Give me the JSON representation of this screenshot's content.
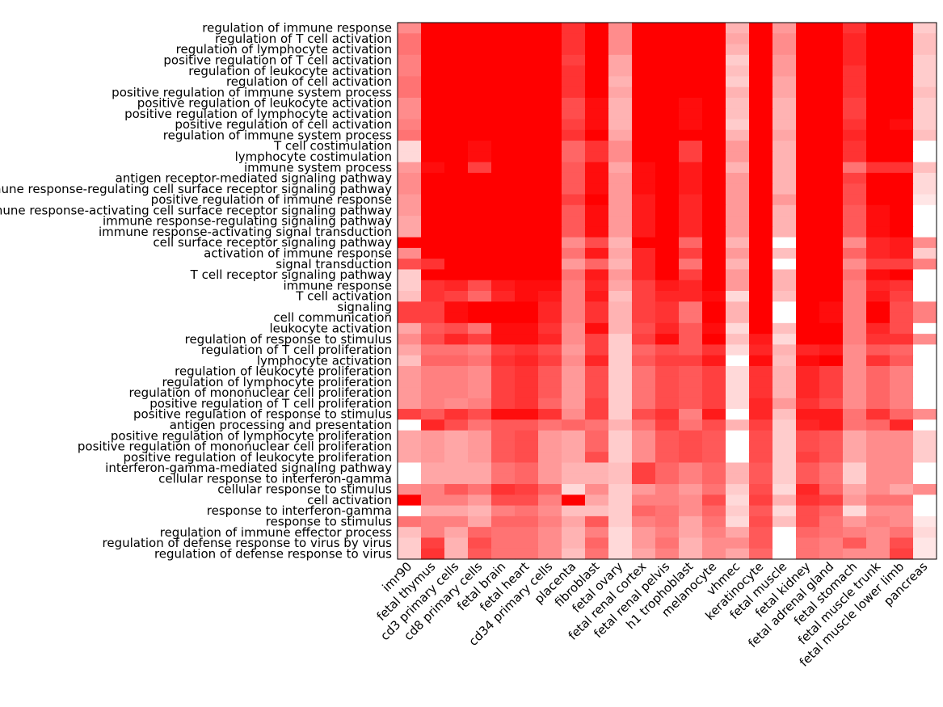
{
  "chart_data": {
    "type": "heatmap",
    "title": "",
    "xlabel": "",
    "ylabel": "",
    "color_low": "#ffffff",
    "color_high": "#ff0000",
    "value_range": [
      0,
      1
    ],
    "grid": false,
    "rows": [
      "regulation of immune response",
      "regulation of T cell activation",
      "regulation of lymphocyte activation",
      "positive regulation of T cell activation",
      "regulation of leukocyte activation",
      "regulation of cell activation",
      "positive regulation of immune system process",
      "positive regulation of leukocyte activation",
      "positive regulation of lymphocyte activation",
      "positive regulation of cell activation",
      "regulation of immune system process",
      "T cell costimulation",
      "lymphocyte costimulation",
      "immune system process",
      "antigen receptor-mediated signaling pathway",
      "immune response-regulating cell surface receptor signaling pathway",
      "positive regulation of immune response",
      "immune response-activating cell surface receptor signaling pathway",
      "immune response-regulating signaling pathway",
      "immune response-activating signal transduction",
      "cell surface receptor signaling pathway",
      "activation of immune response",
      "signal transduction",
      "T cell receptor signaling pathway",
      "immune response",
      "T cell activation",
      "signaling",
      "cell communication",
      "leukocyte activation",
      "regulation of response to stimulus",
      "regulation of T cell proliferation",
      "lymphocyte activation",
      "regulation of leukocyte proliferation",
      "regulation of lymphocyte proliferation",
      "regulation of mononuclear cell proliferation",
      "positive regulation of T cell proliferation",
      "positive regulation of response to stimulus",
      "antigen processing and presentation",
      "positive regulation of lymphocyte proliferation",
      "positive regulation of mononuclear cell proliferation",
      "positive regulation of leukocyte proliferation",
      "interferon-gamma-mediated signaling pathway",
      "cellular response to interferon-gamma",
      "cellular response to stimulus",
      "cell activation",
      "response to interferon-gamma",
      "response to stimulus",
      "regulation of immune effector process",
      "regulation of defense response to virus by virus",
      "regulation of defense response to virus"
    ],
    "columns": [
      "imr90",
      "fetal thymus",
      "cd3 primary cells",
      "cd8 primary cells",
      "fetal brain",
      "fetal heart",
      "cd34 primary cells",
      "placenta",
      "fibroblast",
      "fetal ovary",
      "fetal renal cortex",
      "fetal renal pelvis",
      "h1 trophoblast",
      "melanocyte",
      "vhmec",
      "keratinocyte",
      "fetal muscle",
      "fetal kidney",
      "fetal adrenal gland",
      "fetal stomach",
      "fetal muscle trunk",
      "fetal muscle lower limb",
      "pancreas"
    ],
    "values": [
      [
        0.45,
        1.0,
        1.0,
        1.0,
        1.0,
        1.0,
        1.0,
        0.8,
        1.0,
        0.45,
        1.0,
        1.0,
        1.0,
        1.0,
        0.3,
        1.0,
        0.4,
        1.0,
        1.0,
        0.8,
        1.0,
        1.0,
        0.2
      ],
      [
        0.55,
        1.0,
        1.0,
        1.0,
        1.0,
        1.0,
        1.0,
        0.8,
        1.0,
        0.45,
        1.0,
        1.0,
        1.0,
        1.0,
        0.35,
        1.0,
        0.45,
        1.0,
        1.0,
        0.85,
        1.0,
        1.0,
        0.25
      ],
      [
        0.55,
        1.0,
        1.0,
        1.0,
        1.0,
        1.0,
        1.0,
        0.8,
        1.0,
        0.45,
        1.0,
        1.0,
        1.0,
        1.0,
        0.3,
        1.0,
        0.45,
        1.0,
        1.0,
        0.85,
        1.0,
        1.0,
        0.25
      ],
      [
        0.5,
        1.0,
        1.0,
        1.0,
        1.0,
        1.0,
        1.0,
        0.75,
        1.0,
        0.35,
        1.0,
        1.0,
        1.0,
        1.0,
        0.2,
        1.0,
        0.4,
        1.0,
        1.0,
        0.85,
        1.0,
        1.0,
        0.2
      ],
      [
        0.5,
        1.0,
        1.0,
        1.0,
        1.0,
        1.0,
        1.0,
        0.8,
        1.0,
        0.35,
        1.0,
        1.0,
        1.0,
        1.0,
        0.25,
        1.0,
        0.4,
        1.0,
        1.0,
        0.8,
        1.0,
        1.0,
        0.2
      ],
      [
        0.55,
        1.0,
        1.0,
        1.0,
        1.0,
        1.0,
        1.0,
        0.8,
        1.0,
        0.3,
        1.0,
        1.0,
        1.0,
        1.0,
        0.2,
        1.0,
        0.35,
        1.0,
        1.0,
        0.8,
        1.0,
        1.0,
        0.2
      ],
      [
        0.55,
        1.0,
        1.0,
        1.0,
        1.0,
        1.0,
        1.0,
        0.8,
        1.0,
        0.35,
        1.0,
        1.0,
        1.0,
        1.0,
        0.3,
        1.0,
        0.35,
        1.0,
        1.0,
        0.8,
        1.0,
        1.0,
        0.25
      ],
      [
        0.45,
        1.0,
        1.0,
        1.0,
        1.0,
        1.0,
        1.0,
        0.7,
        0.95,
        0.3,
        1.0,
        1.0,
        0.95,
        1.0,
        0.25,
        1.0,
        0.3,
        1.0,
        1.0,
        0.75,
        1.0,
        1.0,
        0.2
      ],
      [
        0.45,
        1.0,
        1.0,
        1.0,
        1.0,
        1.0,
        1.0,
        0.7,
        0.95,
        0.3,
        1.0,
        1.0,
        0.95,
        1.0,
        0.25,
        1.0,
        0.3,
        1.0,
        1.0,
        0.75,
        1.0,
        1.0,
        0.2
      ],
      [
        0.5,
        1.0,
        1.0,
        1.0,
        1.0,
        1.0,
        1.0,
        0.75,
        0.95,
        0.3,
        1.0,
        1.0,
        0.95,
        1.0,
        0.2,
        1.0,
        0.3,
        1.0,
        1.0,
        0.8,
        1.0,
        0.95,
        0.2
      ],
      [
        0.55,
        1.0,
        1.0,
        1.0,
        1.0,
        1.0,
        1.0,
        0.8,
        1.0,
        0.35,
        1.0,
        1.0,
        1.0,
        1.0,
        0.3,
        1.0,
        0.35,
        1.0,
        1.0,
        0.85,
        1.0,
        1.0,
        0.25
      ],
      [
        0.15,
        1.0,
        1.0,
        0.95,
        1.0,
        1.0,
        1.0,
        0.6,
        0.8,
        0.45,
        1.0,
        1.0,
        0.75,
        1.0,
        0.4,
        1.0,
        0.3,
        1.0,
        1.0,
        0.8,
        1.0,
        1.0,
        0.0
      ],
      [
        0.15,
        1.0,
        1.0,
        0.95,
        1.0,
        1.0,
        1.0,
        0.6,
        0.8,
        0.45,
        1.0,
        1.0,
        0.75,
        1.0,
        0.4,
        1.0,
        0.3,
        1.0,
        1.0,
        0.8,
        1.0,
        1.0,
        0.0
      ],
      [
        0.4,
        0.95,
        1.0,
        0.75,
        1.0,
        1.0,
        1.0,
        0.65,
        0.95,
        0.35,
        0.95,
        1.0,
        0.9,
        1.0,
        0.3,
        1.0,
        0.3,
        1.0,
        1.0,
        0.55,
        0.8,
        0.8,
        0.25
      ],
      [
        0.45,
        1.0,
        1.0,
        1.0,
        1.0,
        1.0,
        1.0,
        0.65,
        0.95,
        0.4,
        0.95,
        1.0,
        0.9,
        1.0,
        0.4,
        1.0,
        0.3,
        1.0,
        1.0,
        0.75,
        1.0,
        1.0,
        0.15
      ],
      [
        0.45,
        1.0,
        1.0,
        1.0,
        1.0,
        1.0,
        1.0,
        0.65,
        0.95,
        0.4,
        0.95,
        1.0,
        0.9,
        1.0,
        0.4,
        1.0,
        0.3,
        1.0,
        1.0,
        0.7,
        1.0,
        1.0,
        0.15
      ],
      [
        0.4,
        1.0,
        1.0,
        1.0,
        1.0,
        1.0,
        1.0,
        0.75,
        1.0,
        0.4,
        0.9,
        1.0,
        0.85,
        1.0,
        0.4,
        1.0,
        0.4,
        1.0,
        1.0,
        0.7,
        1.0,
        1.0,
        0.1
      ],
      [
        0.4,
        1.0,
        1.0,
        1.0,
        1.0,
        1.0,
        1.0,
        0.65,
        0.95,
        0.4,
        0.9,
        1.0,
        0.85,
        1.0,
        0.4,
        1.0,
        0.3,
        1.0,
        1.0,
        0.65,
        0.95,
        1.0,
        0.0
      ],
      [
        0.35,
        1.0,
        1.0,
        1.0,
        1.0,
        1.0,
        1.0,
        0.65,
        0.95,
        0.4,
        0.9,
        1.0,
        0.85,
        1.0,
        0.4,
        1.0,
        0.3,
        1.0,
        1.0,
        0.65,
        0.95,
        1.0,
        0.0
      ],
      [
        0.35,
        1.0,
        1.0,
        1.0,
        1.0,
        1.0,
        1.0,
        0.65,
        0.95,
        0.4,
        0.9,
        1.0,
        0.85,
        1.0,
        0.4,
        1.0,
        0.3,
        1.0,
        1.0,
        0.65,
        0.95,
        1.0,
        0.0
      ],
      [
        1.0,
        1.0,
        1.0,
        1.0,
        1.0,
        1.0,
        1.0,
        0.45,
        0.7,
        0.3,
        1.0,
        1.0,
        0.6,
        1.0,
        0.3,
        1.0,
        0.0,
        1.0,
        1.0,
        0.45,
        0.85,
        0.9,
        0.45
      ],
      [
        0.45,
        1.0,
        1.0,
        1.0,
        1.0,
        1.0,
        1.0,
        0.55,
        0.9,
        0.35,
        0.85,
        1.0,
        0.75,
        1.0,
        0.4,
        1.0,
        0.25,
        1.0,
        1.0,
        0.6,
        0.85,
        0.9,
        0.2
      ],
      [
        0.7,
        0.8,
        1.0,
        1.0,
        1.0,
        1.0,
        1.0,
        0.4,
        0.6,
        0.3,
        0.85,
        1.0,
        0.55,
        1.0,
        0.3,
        1.0,
        0.0,
        1.0,
        1.0,
        0.45,
        0.75,
        0.75,
        0.5
      ],
      [
        0.2,
        1.0,
        1.0,
        1.0,
        1.0,
        1.0,
        1.0,
        0.55,
        0.9,
        0.4,
        0.85,
        1.0,
        0.75,
        1.0,
        0.4,
        1.0,
        0.3,
        1.0,
        1.0,
        0.55,
        0.95,
        1.0,
        0.0
      ],
      [
        0.2,
        0.8,
        0.85,
        0.7,
        0.9,
        0.95,
        0.95,
        0.5,
        0.85,
        0.35,
        0.75,
        0.9,
        0.85,
        1.0,
        0.4,
        1.0,
        0.3,
        1.0,
        1.0,
        0.5,
        0.85,
        0.8,
        0.0
      ],
      [
        0.25,
        0.8,
        0.75,
        0.6,
        0.85,
        0.95,
        0.9,
        0.5,
        0.9,
        0.25,
        0.75,
        0.85,
        0.85,
        0.95,
        0.15,
        1.0,
        0.25,
        1.0,
        1.0,
        0.5,
        0.9,
        0.75,
        0.0
      ],
      [
        0.75,
        0.75,
        0.95,
        1.0,
        1.0,
        1.0,
        0.85,
        0.5,
        0.8,
        0.3,
        0.75,
        0.8,
        0.55,
        1.0,
        0.3,
        1.0,
        0.0,
        1.0,
        0.95,
        0.5,
        1.0,
        0.7,
        0.5
      ],
      [
        0.75,
        0.75,
        0.95,
        1.0,
        1.0,
        1.0,
        0.85,
        0.5,
        0.8,
        0.3,
        0.75,
        0.8,
        0.55,
        1.0,
        0.3,
        1.0,
        0.0,
        1.0,
        0.95,
        0.5,
        1.0,
        0.7,
        0.5
      ],
      [
        0.35,
        0.65,
        0.7,
        0.55,
        0.95,
        0.95,
        0.8,
        0.45,
        0.95,
        0.3,
        0.7,
        0.85,
        0.65,
        0.95,
        0.15,
        1.0,
        0.25,
        1.0,
        1.0,
        0.5,
        0.85,
        0.7,
        0.0
      ],
      [
        0.45,
        0.7,
        0.85,
        0.75,
        0.95,
        0.95,
        0.85,
        0.45,
        0.75,
        0.2,
        0.75,
        0.95,
        0.65,
        1.0,
        0.25,
        0.9,
        0.15,
        1.0,
        1.0,
        0.5,
        0.8,
        0.8,
        0.45
      ],
      [
        0.35,
        0.55,
        0.55,
        0.5,
        0.75,
        0.8,
        0.7,
        0.4,
        0.75,
        0.2,
        0.6,
        0.7,
        0.65,
        0.8,
        0.15,
        0.85,
        0.3,
        0.85,
        0.9,
        0.45,
        0.65,
        0.6,
        0.0
      ],
      [
        0.25,
        0.6,
        0.6,
        0.55,
        0.8,
        0.85,
        0.75,
        0.45,
        0.85,
        0.2,
        0.65,
        0.75,
        0.75,
        0.9,
        0.0,
        0.95,
        0.25,
        0.95,
        1.0,
        0.45,
        0.8,
        0.65,
        0.0
      ],
      [
        0.4,
        0.5,
        0.5,
        0.45,
        0.75,
        0.8,
        0.65,
        0.4,
        0.7,
        0.2,
        0.55,
        0.7,
        0.65,
        0.75,
        0.15,
        0.8,
        0.3,
        0.85,
        0.75,
        0.45,
        0.6,
        0.5,
        0.0
      ],
      [
        0.4,
        0.5,
        0.5,
        0.45,
        0.75,
        0.8,
        0.65,
        0.4,
        0.7,
        0.2,
        0.55,
        0.7,
        0.65,
        0.75,
        0.15,
        0.8,
        0.3,
        0.85,
        0.75,
        0.45,
        0.6,
        0.5,
        0.0
      ],
      [
        0.4,
        0.5,
        0.5,
        0.45,
        0.75,
        0.8,
        0.65,
        0.4,
        0.7,
        0.2,
        0.55,
        0.7,
        0.65,
        0.75,
        0.15,
        0.8,
        0.3,
        0.85,
        0.75,
        0.45,
        0.6,
        0.5,
        0.0
      ],
      [
        0.4,
        0.5,
        0.45,
        0.5,
        0.75,
        0.8,
        0.6,
        0.4,
        0.75,
        0.2,
        0.55,
        0.7,
        0.65,
        0.75,
        0.15,
        0.85,
        0.4,
        0.8,
        0.7,
        0.45,
        0.6,
        0.5,
        0.0
      ],
      [
        0.75,
        0.65,
        0.8,
        0.7,
        0.95,
        0.95,
        0.8,
        0.45,
        0.75,
        0.2,
        0.7,
        0.8,
        0.5,
        0.9,
        0.0,
        0.85,
        0.25,
        0.9,
        0.9,
        0.55,
        0.8,
        0.6,
        0.45
      ],
      [
        0.0,
        0.85,
        0.7,
        0.55,
        0.65,
        0.65,
        0.55,
        0.6,
        0.55,
        0.3,
        0.55,
        0.75,
        0.55,
        0.7,
        0.3,
        0.75,
        0.2,
        0.85,
        0.9,
        0.55,
        0.6,
        0.85,
        0.0
      ],
      [
        0.35,
        0.4,
        0.35,
        0.4,
        0.65,
        0.7,
        0.4,
        0.35,
        0.6,
        0.2,
        0.45,
        0.65,
        0.7,
        0.65,
        0.0,
        0.7,
        0.2,
        0.7,
        0.65,
        0.35,
        0.45,
        0.45,
        0.2
      ],
      [
        0.35,
        0.4,
        0.35,
        0.4,
        0.65,
        0.7,
        0.4,
        0.35,
        0.6,
        0.2,
        0.45,
        0.65,
        0.7,
        0.65,
        0.0,
        0.7,
        0.2,
        0.7,
        0.65,
        0.35,
        0.45,
        0.45,
        0.2
      ],
      [
        0.35,
        0.4,
        0.35,
        0.4,
        0.65,
        0.7,
        0.4,
        0.35,
        0.7,
        0.2,
        0.45,
        0.65,
        0.7,
        0.65,
        0.0,
        0.7,
        0.2,
        0.75,
        0.65,
        0.35,
        0.45,
        0.45,
        0.2
      ],
      [
        0.0,
        0.35,
        0.35,
        0.35,
        0.55,
        0.6,
        0.4,
        0.3,
        0.3,
        0.25,
        0.75,
        0.6,
        0.5,
        0.6,
        0.3,
        0.65,
        0.2,
        0.65,
        0.55,
        0.2,
        0.45,
        0.45,
        0.0
      ],
      [
        0.0,
        0.35,
        0.35,
        0.35,
        0.55,
        0.6,
        0.4,
        0.3,
        0.3,
        0.25,
        0.75,
        0.6,
        0.5,
        0.6,
        0.3,
        0.65,
        0.2,
        0.65,
        0.55,
        0.2,
        0.45,
        0.45,
        0.0
      ],
      [
        0.45,
        0.5,
        0.65,
        0.55,
        0.8,
        0.75,
        0.6,
        0.15,
        0.45,
        0.2,
        0.4,
        0.5,
        0.4,
        0.55,
        0.2,
        0.7,
        0.15,
        0.85,
        0.6,
        0.35,
        0.45,
        0.35,
        0.45
      ],
      [
        1.0,
        0.5,
        0.5,
        0.4,
        0.7,
        0.7,
        0.5,
        1.0,
        0.35,
        0.2,
        0.5,
        0.5,
        0.45,
        0.7,
        0.15,
        0.75,
        0.3,
        0.8,
        0.75,
        0.4,
        0.55,
        0.55,
        0.0
      ],
      [
        0.0,
        0.35,
        0.35,
        0.3,
        0.5,
        0.55,
        0.45,
        0.25,
        0.25,
        0.2,
        0.6,
        0.55,
        0.45,
        0.6,
        0.2,
        0.65,
        0.15,
        0.7,
        0.6,
        0.15,
        0.45,
        0.45,
        0.0
      ],
      [
        0.55,
        0.5,
        0.5,
        0.35,
        0.6,
        0.6,
        0.5,
        0.35,
        0.65,
        0.2,
        0.5,
        0.55,
        0.35,
        0.55,
        0.15,
        0.7,
        0.25,
        0.7,
        0.55,
        0.4,
        0.5,
        0.45,
        0.1
      ],
      [
        0.25,
        0.5,
        0.35,
        0.6,
        0.55,
        0.55,
        0.45,
        0.3,
        0.5,
        0.15,
        0.4,
        0.5,
        0.35,
        0.5,
        0.35,
        0.65,
        0.0,
        0.6,
        0.55,
        0.5,
        0.45,
        0.55,
        0.15
      ],
      [
        0.2,
        0.75,
        0.3,
        0.7,
        0.55,
        0.55,
        0.45,
        0.3,
        0.6,
        0.15,
        0.4,
        0.55,
        0.3,
        0.45,
        0.45,
        0.65,
        0.0,
        0.55,
        0.5,
        0.65,
        0.45,
        0.7,
        0.1
      ],
      [
        0.2,
        0.8,
        0.3,
        0.65,
        0.55,
        0.55,
        0.45,
        0.25,
        0.55,
        0.15,
        0.35,
        0.5,
        0.3,
        0.45,
        0.35,
        0.6,
        0.0,
        0.55,
        0.5,
        0.45,
        0.45,
        0.75,
        0.1
      ]
    ]
  }
}
